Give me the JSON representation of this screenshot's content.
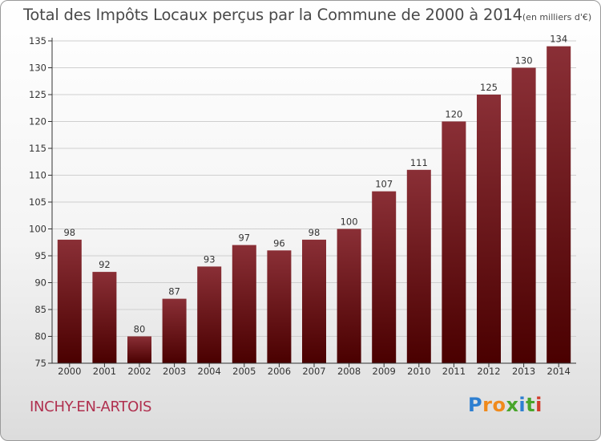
{
  "title": "Total des Impôts Locaux perçus par la Commune de 2000 à 2014",
  "unit_note": "(en milliers d'€)",
  "commune": "INCHY-EN-ARTOIS",
  "brand": {
    "letters": [
      "P",
      "r",
      "o",
      "x",
      "i",
      "t",
      "i"
    ],
    "colors": [
      "#2e7fd1",
      "#f08a1c",
      "#f08a1c",
      "#49a52b",
      "#2e7fd1",
      "#49a52b",
      "#d23c2c"
    ]
  },
  "colors": {
    "bar_top": "#8a2f36",
    "bar_bottom": "#4a0000",
    "axis": "#333333",
    "grid": "#cfcfcf"
  },
  "chart_data": {
    "type": "bar",
    "categories": [
      "2000",
      "2001",
      "2002",
      "2003",
      "2004",
      "2005",
      "2006",
      "2007",
      "2008",
      "2009",
      "2010",
      "2011",
      "2012",
      "2013",
      "2014"
    ],
    "values": [
      98,
      92,
      80,
      87,
      93,
      97,
      96,
      98,
      100,
      107,
      111,
      120,
      125,
      130,
      134
    ],
    "ylim": [
      75,
      135
    ],
    "yticks": [
      75,
      80,
      85,
      90,
      95,
      100,
      105,
      110,
      115,
      120,
      125,
      130,
      135
    ],
    "grid": "horizontal",
    "data_labels": true
  }
}
